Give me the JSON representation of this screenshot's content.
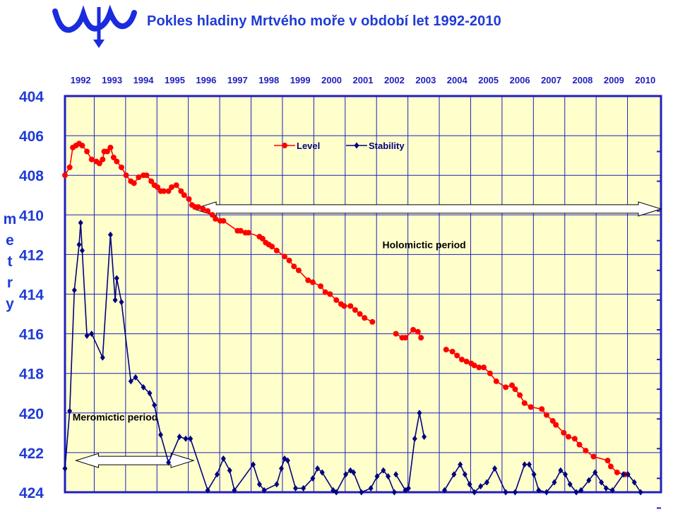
{
  "page": {
    "title": "Pokles hladiny Mrtvého moře v období let 1992-2010",
    "logo_icon": "wave-trident-logo-icon",
    "colors": {
      "title": "#1f3bd6",
      "plot_bg": "#ffffcc",
      "grid": "#1f1fbf",
      "level": "#ff0000",
      "stability": "#000080"
    }
  },
  "chart_data": {
    "type": "line",
    "ylabel": "metry",
    "ylim": [
      404,
      424
    ],
    "y_inverted": true,
    "y_ticks": [
      404,
      406,
      408,
      410,
      412,
      414,
      416,
      418,
      420,
      422,
      424
    ],
    "xlim": [
      1992,
      2011
    ],
    "x_ticks": [
      "1992",
      "1993",
      "1994",
      "1995",
      "1996",
      "1997",
      "1998",
      "1999",
      "2000",
      "2001",
      "2002",
      "2003",
      "2004",
      "2005",
      "2006",
      "2007",
      "2008",
      "2009",
      "2010"
    ],
    "grid": true,
    "legend_position": "top-center",
    "annotations": [
      {
        "text": "Holomictic period",
        "arrow_from": 1996.1,
        "arrow_to": 2011.0,
        "arrow_y": 409.7,
        "text_x": 2003.45,
        "text_y": 411.5
      },
      {
        "text": "Meromictic period",
        "arrow_from": 1992.35,
        "arrow_to": 1996.1,
        "arrow_y": 422.4,
        "text_x": 1993.6,
        "text_y": 420.2
      }
    ],
    "series": [
      {
        "name": "Level",
        "color": "#ff0000",
        "marker": "circle",
        "segments": [
          [
            [
              1992.0,
              408.0
            ],
            [
              1992.15,
              407.6
            ],
            [
              1992.25,
              406.6
            ],
            [
              1992.35,
              406.5
            ],
            [
              1992.45,
              406.4
            ],
            [
              1992.55,
              406.5
            ],
            [
              1992.7,
              406.8
            ],
            [
              1992.85,
              407.2
            ],
            [
              1993.0,
              407.3
            ],
            [
              1993.1,
              407.4
            ],
            [
              1993.2,
              407.2
            ],
            [
              1993.25,
              406.8
            ],
            [
              1993.35,
              406.8
            ],
            [
              1993.45,
              406.6
            ],
            [
              1993.55,
              407.1
            ],
            [
              1993.65,
              407.3
            ],
            [
              1993.8,
              407.6
            ],
            [
              1993.95,
              408.0
            ],
            [
              1994.1,
              408.3
            ],
            [
              1994.2,
              408.4
            ],
            [
              1994.35,
              408.1
            ],
            [
              1994.5,
              408.0
            ],
            [
              1994.6,
              408.0
            ],
            [
              1994.75,
              408.3
            ],
            [
              1994.85,
              408.5
            ],
            [
              1994.95,
              408.6
            ],
            [
              1995.05,
              408.8
            ],
            [
              1995.15,
              408.8
            ],
            [
              1995.3,
              408.8
            ],
            [
              1995.4,
              408.6
            ],
            [
              1995.55,
              408.5
            ],
            [
              1995.7,
              408.8
            ],
            [
              1995.8,
              409.0
            ],
            [
              1995.95,
              409.2
            ],
            [
              1996.05,
              409.5
            ],
            [
              1996.15,
              409.6
            ],
            [
              1996.25,
              409.6
            ],
            [
              1996.4,
              409.7
            ],
            [
              1996.55,
              409.8
            ],
            [
              1996.7,
              410.0
            ],
            [
              1996.8,
              410.2
            ],
            [
              1996.95,
              410.3
            ],
            [
              1997.05,
              410.3
            ],
            [
              1997.5,
              410.8
            ],
            [
              1997.6,
              410.8
            ],
            [
              1997.75,
              410.9
            ],
            [
              1997.85,
              410.9
            ],
            [
              1998.2,
              411.1
            ],
            [
              1998.3,
              411.2
            ],
            [
              1998.4,
              411.4
            ],
            [
              1998.5,
              411.5
            ],
            [
              1998.6,
              411.6
            ],
            [
              1998.75,
              411.8
            ],
            [
              1999.0,
              412.1
            ],
            [
              1999.15,
              412.3
            ],
            [
              1999.3,
              412.6
            ],
            [
              1999.45,
              412.8
            ],
            [
              1999.75,
              413.3
            ],
            [
              1999.9,
              413.4
            ],
            [
              2000.15,
              413.6
            ],
            [
              2000.3,
              413.9
            ],
            [
              2000.45,
              414.0
            ],
            [
              2000.65,
              414.3
            ],
            [
              2000.8,
              414.5
            ],
            [
              2000.9,
              414.6
            ],
            [
              2001.1,
              414.6
            ],
            [
              2001.25,
              414.8
            ],
            [
              2001.4,
              415.0
            ],
            [
              2001.55,
              415.2
            ],
            [
              2001.8,
              415.4
            ]
          ],
          [
            [
              2002.55,
              416.0
            ],
            [
              2002.75,
              416.2
            ],
            [
              2002.85,
              416.2
            ],
            [
              2003.1,
              415.8
            ],
            [
              2003.25,
              415.9
            ],
            [
              2003.35,
              416.2
            ]
          ],
          [
            [
              2004.15,
              416.8
            ],
            [
              2004.35,
              416.9
            ],
            [
              2004.5,
              417.1
            ],
            [
              2004.65,
              417.3
            ],
            [
              2004.8,
              417.4
            ],
            [
              2004.95,
              417.5
            ],
            [
              2005.05,
              417.6
            ],
            [
              2005.2,
              417.7
            ],
            [
              2005.35,
              417.7
            ],
            [
              2005.55,
              418.0
            ],
            [
              2005.75,
              418.4
            ],
            [
              2006.05,
              418.7
            ],
            [
              2006.25,
              418.6
            ],
            [
              2006.35,
              418.8
            ],
            [
              2006.5,
              419.1
            ],
            [
              2006.65,
              419.5
            ],
            [
              2006.85,
              419.7
            ],
            [
              2007.2,
              419.8
            ],
            [
              2007.35,
              420.1
            ],
            [
              2007.55,
              420.4
            ],
            [
              2007.65,
              420.6
            ],
            [
              2007.9,
              421.0
            ],
            [
              2008.05,
              421.2
            ],
            [
              2008.25,
              421.3
            ],
            [
              2008.4,
              421.6
            ],
            [
              2008.6,
              421.9
            ],
            [
              2008.85,
              422.2
            ],
            [
              2009.3,
              422.4
            ],
            [
              2009.4,
              422.7
            ],
            [
              2009.6,
              423.0
            ],
            [
              2009.85,
              423.1
            ]
          ]
        ]
      },
      {
        "name": "Stability",
        "color": "#000080",
        "marker": "diamond",
        "segments": [
          [
            [
              1992.0,
              422.8
            ],
            [
              1992.15,
              419.9
            ],
            [
              1992.3,
              413.8
            ],
            [
              1992.45,
              411.5
            ],
            [
              1992.5,
              410.4
            ],
            [
              1992.55,
              411.8
            ],
            [
              1992.7,
              416.1
            ],
            [
              1992.85,
              416.0
            ],
            [
              1993.2,
              417.2
            ],
            [
              1993.45,
              411.0
            ],
            [
              1993.6,
              414.3
            ],
            [
              1993.65,
              413.2
            ],
            [
              1993.8,
              414.4
            ],
            [
              1994.1,
              418.4
            ],
            [
              1994.25,
              418.2
            ],
            [
              1994.5,
              418.7
            ],
            [
              1994.7,
              419.0
            ],
            [
              1994.85,
              419.6
            ],
            [
              1995.05,
              421.1
            ],
            [
              1995.3,
              422.5
            ],
            [
              1995.65,
              421.2
            ],
            [
              1995.85,
              421.3
            ],
            [
              1996.0,
              421.3
            ],
            [
              1996.55,
              423.9
            ],
            [
              1996.85,
              423.1
            ],
            [
              1997.05,
              422.3
            ],
            [
              1997.25,
              422.9
            ],
            [
              1997.4,
              423.9
            ],
            [
              1998.0,
              422.6
            ],
            [
              1998.2,
              423.6
            ],
            [
              1998.35,
              423.9
            ],
            [
              1998.75,
              423.6
            ],
            [
              1998.9,
              422.8
            ],
            [
              1999.0,
              422.3
            ],
            [
              1999.1,
              422.4
            ],
            [
              1999.35,
              423.8
            ],
            [
              1999.6,
              423.8
            ],
            [
              1999.9,
              423.3
            ],
            [
              2000.05,
              422.8
            ],
            [
              2000.2,
              423.0
            ],
            [
              2000.55,
              423.9
            ],
            [
              2000.65,
              424.0
            ],
            [
              2000.95,
              423.1
            ],
            [
              2001.1,
              422.9
            ],
            [
              2001.2,
              423.0
            ],
            [
              2001.45,
              424.0
            ],
            [
              2001.75,
              423.8
            ],
            [
              2001.95,
              423.2
            ],
            [
              2002.15,
              422.9
            ],
            [
              2002.3,
              423.2
            ],
            [
              2002.5,
              424.0
            ]
          ],
          [
            [
              2002.55,
              423.1
            ],
            [
              2002.85,
              423.9
            ],
            [
              2002.95,
              423.8
            ],
            [
              2003.15,
              421.3
            ],
            [
              2003.3,
              420.0
            ],
            [
              2003.45,
              421.2
            ]
          ],
          [
            [
              2004.1,
              423.9
            ],
            [
              2004.4,
              423.1
            ],
            [
              2004.6,
              422.6
            ],
            [
              2004.75,
              423.1
            ],
            [
              2004.9,
              423.6
            ],
            [
              2005.05,
              424.0
            ],
            [
              2005.25,
              423.7
            ],
            [
              2005.45,
              423.5
            ],
            [
              2005.7,
              422.8
            ],
            [
              2006.05,
              424.0
            ],
            [
              2006.35,
              424.0
            ],
            [
              2006.65,
              422.6
            ],
            [
              2006.8,
              422.6
            ],
            [
              2006.95,
              423.1
            ],
            [
              2007.1,
              423.9
            ],
            [
              2007.35,
              424.0
            ],
            [
              2007.6,
              423.5
            ],
            [
              2007.8,
              422.9
            ],
            [
              2007.95,
              423.1
            ],
            [
              2008.1,
              423.6
            ],
            [
              2008.3,
              424.0
            ],
            [
              2008.45,
              423.9
            ],
            [
              2008.7,
              423.4
            ],
            [
              2008.9,
              423.0
            ],
            [
              2009.1,
              423.5
            ],
            [
              2009.25,
              423.8
            ],
            [
              2009.45,
              423.9
            ],
            [
              2009.8,
              423.1
            ],
            [
              2009.95,
              423.1
            ],
            [
              2010.15,
              423.5
            ],
            [
              2010.35,
              424.0
            ]
          ]
        ]
      }
    ]
  }
}
